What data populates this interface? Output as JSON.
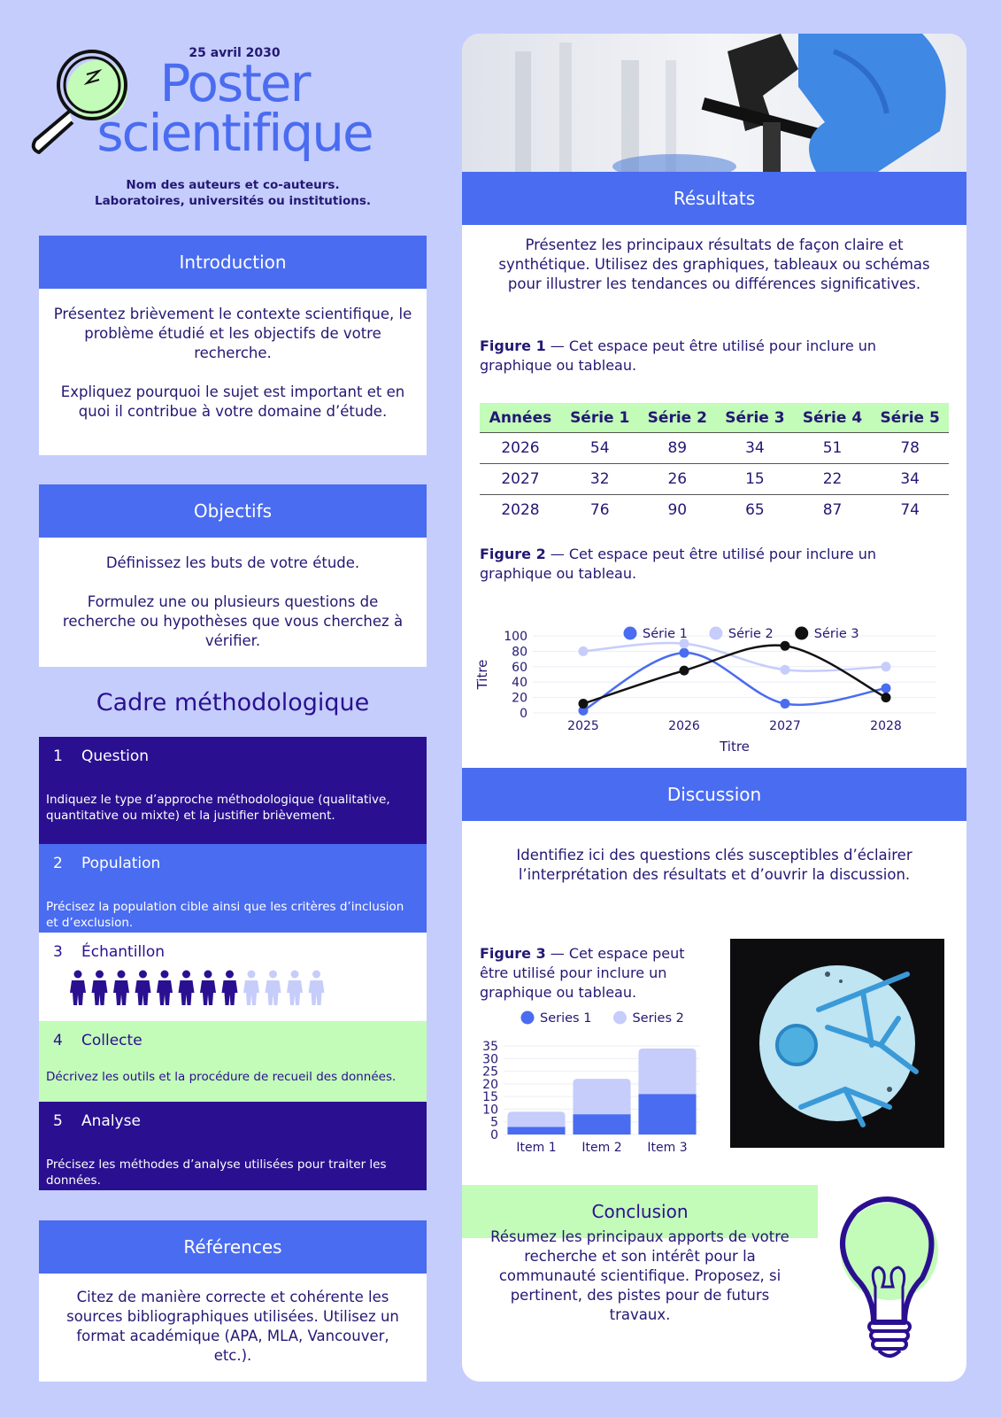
{
  "header": {
    "date": "25 avril 2030",
    "title_line1": "Poster",
    "title_line2": "scientifique",
    "authors": "Nom des auteurs et co-auteurs.",
    "institutions": "Laboratoires, universités ou institutions."
  },
  "introduction": {
    "title": "Introduction",
    "paragraphs": [
      "Présentez brièvement le contexte scientifique, le problème étudié et les objectifs de votre recherche.",
      "Expliquez pourquoi le sujet est important et en quoi il contribue à votre domaine d’étude."
    ]
  },
  "objectives": {
    "title": "Objectifs",
    "paragraphs": [
      "Définissez les buts de votre étude.",
      "Formulez une ou plusieurs questions de recherche ou hypothèses que vous cherchez à vérifier."
    ]
  },
  "methodology": {
    "title": "Cadre méthodologique",
    "steps": [
      {
        "number": 1,
        "label": "Question",
        "text": "Indiquez le type d’approche méthodologique (qualitative, quantitative ou mixte) et la justifier brièvement."
      },
      {
        "number": 2,
        "label": "Population",
        "text": "Précisez la population cible ainsi que les critères d’inclusion et d’exclusion."
      },
      {
        "number": 3,
        "label": "Échantillon"
      },
      {
        "number": 4,
        "label": "Collecte",
        "text": "Décrivez les outils et la procédure de recueil des données."
      },
      {
        "number": 5,
        "label": "Analyse",
        "text": "Précisez les méthodes d’analyse utilisées pour traiter les données."
      }
    ]
  },
  "references": {
    "title": "Références",
    "text": "Citez de manière correcte et cohérente les sources bibliographiques utilisées. Utilisez un format académique (APA, MLA, Vancouver, etc.)."
  },
  "results": {
    "title": "Résultats",
    "text": "Présentez les principaux résultats de façon claire et synthétique. Utilisez des graphiques, tableaux ou schémas pour illustrer les tendances ou différences significatives.",
    "figure1": {
      "label": "Figure 1",
      "caption": " — Cet espace peut être utilisé pour inclure un graphique ou tableau."
    },
    "table": {
      "header": [
        "Années",
        "Série 1",
        "Série 2",
        "Série 3",
        "Série 4",
        "Série 5"
      ],
      "rows": [
        [
          2026,
          54,
          89,
          34,
          51,
          78
        ],
        [
          2027,
          32,
          26,
          15,
          22,
          34
        ],
        [
          2028,
          76,
          90,
          65,
          87,
          74
        ]
      ]
    },
    "figure2": {
      "label": "Figure 2",
      "caption": " — Cet espace peut être utilisé pour inclure un graphique ou tableau.",
      "chart": {
        "type": "line",
        "categories": [
          "2025",
          "2026",
          "2027",
          "2028"
        ],
        "xlabel": "Titre",
        "ylabel": "Titre",
        "ylim": [
          0,
          100
        ],
        "yticks": [
          0,
          20,
          40,
          60,
          80,
          100
        ],
        "grid": true,
        "series": [
          {
            "name": "Série 1",
            "color": "#4a6cf0",
            "values": [
              3,
              78,
              12,
              32
            ]
          },
          {
            "name": "Série 2",
            "color": "#c6cdfb",
            "values": [
              80,
              90,
              56,
              60
            ]
          },
          {
            "name": "Série 3",
            "color": "#111111",
            "values": [
              12,
              55,
              87,
              20
            ]
          }
        ]
      }
    }
  },
  "discussion": {
    "title": "Discussion",
    "text": "Identifiez ici des questions clés susceptibles d’éclairer l’interprétation des résultats et d’ouvrir la discussion.",
    "figure3": {
      "label": "Figure 3",
      "caption": " — Cet espace peut être utilisé pour inclure un graphique ou tableau.",
      "chart": {
        "type": "stacked_bar",
        "categories": [
          "Item 1",
          "Item 2",
          "Item 3"
        ],
        "ylim": [
          0,
          35
        ],
        "yticks": [
          0,
          5,
          10,
          15,
          20,
          25,
          30,
          35
        ],
        "grid": true,
        "series": [
          {
            "name": "Series 1",
            "color": "#4a6cf0",
            "values": [
              3,
              8,
              16
            ]
          },
          {
            "name": "Series 2",
            "color": "#c6cdfb",
            "values": [
              6,
              14,
              18
            ]
          }
        ]
      }
    }
  },
  "conclusion": {
    "title": "Conclusion",
    "text": "Résumez les principaux apports de votre recherche et son intérêt pour la communauté scientifique. Proposez, si pertinent, des pistes pour de futurs travaux."
  }
}
